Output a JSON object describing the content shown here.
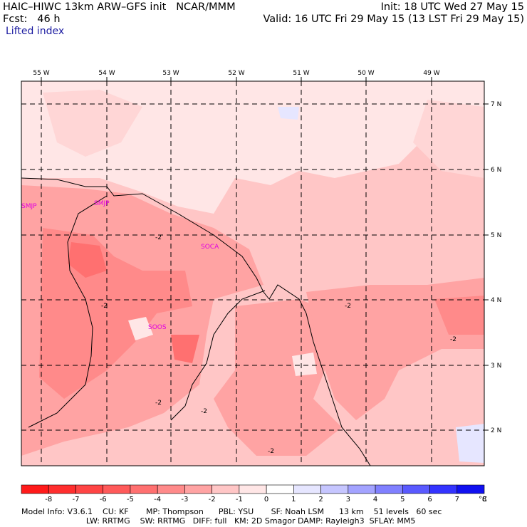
{
  "header": {
    "line1_left": "HAIC–HIWC 13km ARW–GFS init   NCAR/MMM",
    "line2_left": "Fcst:   46 h",
    "line1_right": "Init: 18 UTC Wed 27 May 15",
    "line2_right": "Valid: 16 UTC Fri 29 May 15 (13 LST Fri 29 May 15)",
    "field_title": "Lifted index"
  },
  "map": {
    "lon_labels": [
      "55 W",
      "54 W",
      "53 W",
      "52 W",
      "51 W",
      "50 W",
      "49 W"
    ],
    "lat_labels": [
      "7 N",
      "6 N",
      "5 N",
      "4 N",
      "3 N",
      "2 N"
    ],
    "stations": [
      "SMJP",
      "SOCA",
      "SMJP",
      "SOOS"
    ],
    "contour_labels": [
      "-2",
      "-2",
      "-2",
      "-2",
      "-2",
      "-2",
      "-2"
    ]
  },
  "colorbar": {
    "ticks": [
      "-8",
      "-7",
      "-6",
      "-5",
      "-4",
      "-3",
      "-2",
      "-1",
      "0",
      "1",
      "2",
      "3",
      "4",
      "5",
      "6",
      "7",
      "8"
    ],
    "unit": "°C",
    "colors": [
      "#ff1a1a",
      "#ff2e2e",
      "#ff4444",
      "#ff5a5a",
      "#ff7070",
      "#ff8a8a",
      "#ffa3a3",
      "#ffc6c6",
      "#ffe6e6",
      "#ffffff",
      "#e6e6ff",
      "#c6c6ff",
      "#a3a3ff",
      "#8080ff",
      "#5a5aff",
      "#3333ff",
      "#1010f0"
    ]
  },
  "footer": {
    "line1": "Model Info: V3.6.1    CU: KF       MP: Thompson      PBL: YSU       SF: Noah LSM      13 km    51 levels   60 sec",
    "line2": "                          LW: RRTMG    SW: RRTMG   DIFF: full   KM: 2D Smagor DAMP: Rayleigh3  SFLAY: MM5"
  }
}
